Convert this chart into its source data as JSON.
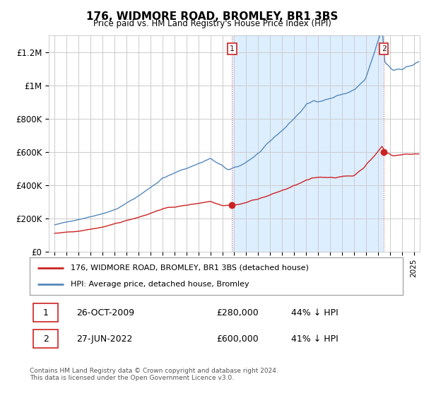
{
  "title": "176, WIDMORE ROAD, BROMLEY, BR1 3BS",
  "subtitle": "Price paid vs. HM Land Registry's House Price Index (HPI)",
  "ylim": [
    0,
    1300000
  ],
  "yticks": [
    0,
    200000,
    400000,
    600000,
    800000,
    1000000,
    1200000
  ],
  "ytick_labels": [
    "£0",
    "£200K",
    "£400K",
    "£600K",
    "£800K",
    "£1M",
    "£1.2M"
  ],
  "background_color": "#ffffff",
  "plot_bg_color": "#ffffff",
  "grid_color": "#cccccc",
  "shade_color": "#ddeeff",
  "hpi_color": "#5588bb",
  "price_color": "#cc2222",
  "sale1_date": 2009.82,
  "sale1_price": 280000,
  "sale2_date": 2022.49,
  "sale2_price": 600000,
  "annotation1_label": "1",
  "annotation2_label": "2",
  "legend_entry1": "176, WIDMORE ROAD, BROMLEY, BR1 3BS (detached house)",
  "legend_entry2": "HPI: Average price, detached house, Bromley",
  "table_row1": [
    "1",
    "26-OCT-2009",
    "£280,000",
    "44% ↓ HPI"
  ],
  "table_row2": [
    "2",
    "27-JUN-2022",
    "£600,000",
    "41% ↓ HPI"
  ],
  "footer": "Contains HM Land Registry data © Crown copyright and database right 2024.\nThis data is licensed under the Open Government Licence v3.0.",
  "xlim_start": 1994.5,
  "xlim_end": 2025.5
}
